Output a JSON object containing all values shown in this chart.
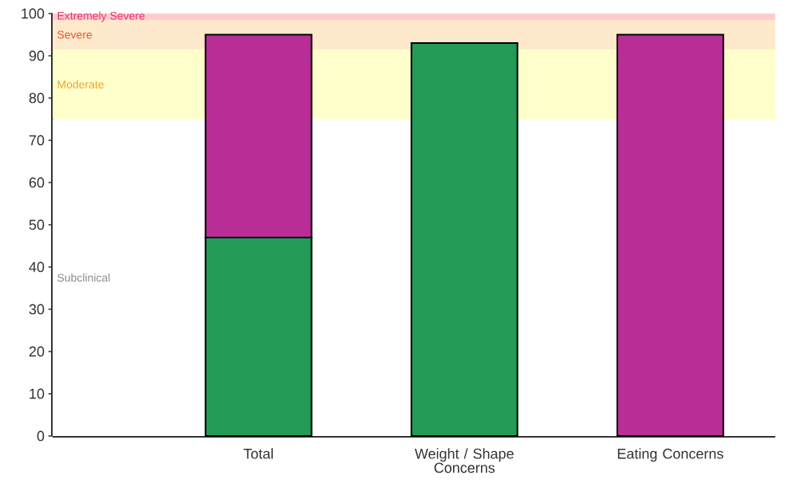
{
  "chart_data": {
    "type": "bar",
    "stacked": true,
    "categories": [
      "Total",
      "Weight / Shape Concerns",
      "Eating Concerns"
    ],
    "series": [
      {
        "color": "#249a57",
        "values": [
          47,
          93,
          null
        ]
      },
      {
        "color": "#b82e96",
        "values": [
          48,
          null,
          95
        ]
      }
    ],
    "ylim": [
      0,
      100
    ],
    "yticks": [
      0,
      10,
      20,
      30,
      40,
      50,
      60,
      70,
      80,
      90,
      100
    ],
    "bands": [
      {
        "axis": "y",
        "from": 0,
        "to": 75,
        "label": "Subclinical",
        "color": "#ffffff"
      },
      {
        "axis": "y",
        "from": 75,
        "to": 91.5,
        "label": "Moderate",
        "color": "#ffffcc"
      },
      {
        "axis": "y",
        "from": 91.5,
        "to": 98.5,
        "label": "Severe",
        "color": "#ffe9cc"
      },
      {
        "axis": "y",
        "from": 98.5,
        "to": 100,
        "label": "Extremely Severe",
        "color": "#ffcccc"
      }
    ]
  }
}
